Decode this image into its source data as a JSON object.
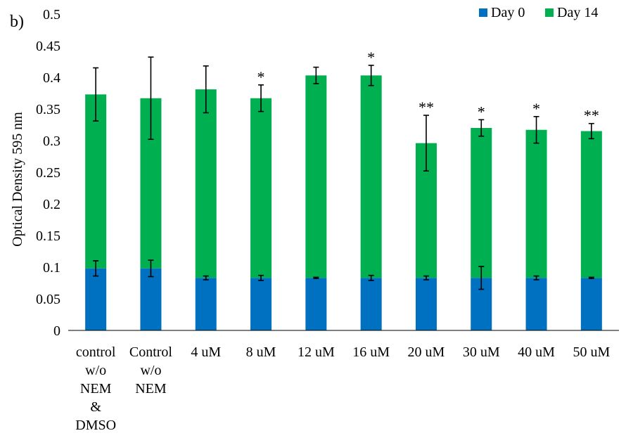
{
  "chart_data": {
    "type": "bar",
    "stacked": true,
    "panel_label": "b)",
    "ylabel": "Optical Density 595 nm",
    "xlabel": "",
    "ylim": [
      0,
      0.5
    ],
    "yticks": [
      "0",
      "0.05",
      "0.1",
      "0.15",
      "0.2",
      "0.25",
      "0.3",
      "0.35",
      "0.4",
      "0.45",
      "0.5"
    ],
    "ytick_values": [
      0,
      0.05,
      0.1,
      0.15,
      0.2,
      0.25,
      0.3,
      0.35,
      0.4,
      0.45,
      0.5
    ],
    "legend_position": "top-right",
    "categories": [
      [
        "control",
        "w/o",
        "NEM",
        "&",
        "DMSO"
      ],
      [
        "Control",
        "w/o",
        "NEM"
      ],
      [
        "4 uM"
      ],
      [
        "8 uM"
      ],
      [
        "12 uM"
      ],
      [
        "16 uM"
      ],
      [
        "20 uM"
      ],
      [
        "30 uM"
      ],
      [
        "40 uM"
      ],
      [
        "50 uM"
      ]
    ],
    "series": [
      {
        "name": "Day 0",
        "color": "#0070C0",
        "values": [
          0.098,
          0.098,
          0.083,
          0.083,
          0.083,
          0.083,
          0.083,
          0.083,
          0.083,
          0.083
        ],
        "error": [
          0.012,
          0.013,
          0.003,
          0.004,
          0.001,
          0.004,
          0.003,
          0.018,
          0.003,
          0.001
        ]
      },
      {
        "name": "Day 14",
        "color": "#00B050",
        "values": [
          0.373,
          0.367,
          0.381,
          0.367,
          0.403,
          0.403,
          0.296,
          0.32,
          0.317,
          0.315
        ],
        "error": [
          0.042,
          0.065,
          0.037,
          0.021,
          0.013,
          0.016,
          0.044,
          0.013,
          0.021,
          0.012
        ]
      }
    ],
    "annotations": [
      "",
      "",
      "",
      "*",
      "",
      "*",
      "**",
      "*",
      "*",
      "**"
    ]
  }
}
